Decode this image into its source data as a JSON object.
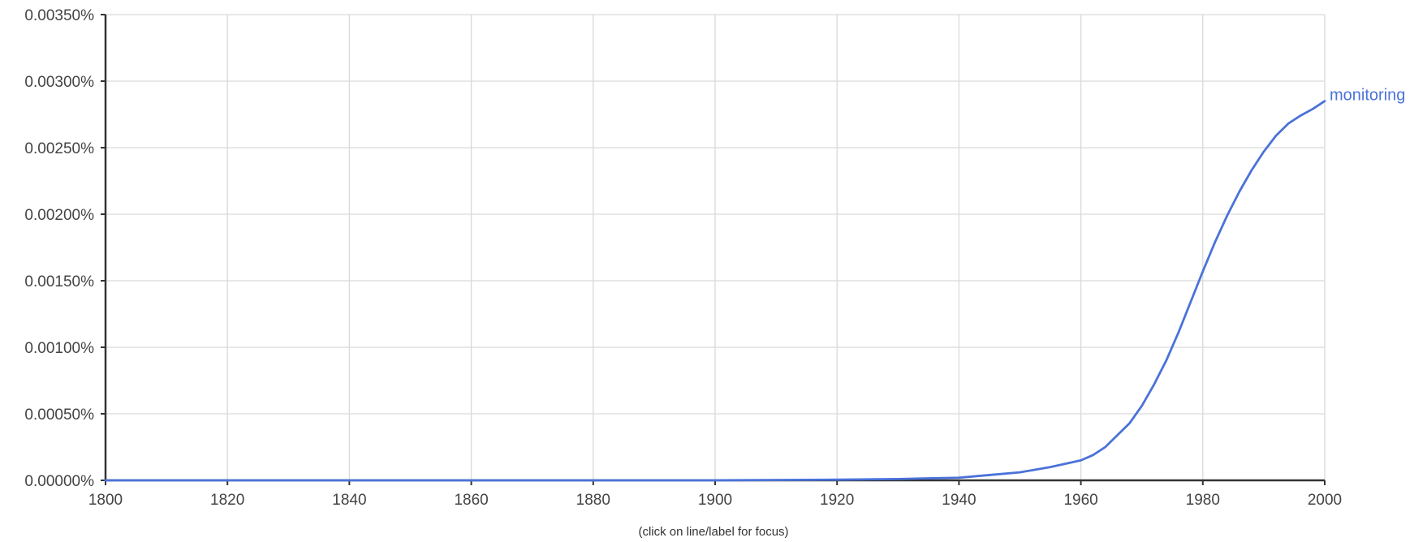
{
  "chart_data": {
    "type": "line",
    "title": "",
    "xlabel": "",
    "ylabel": "",
    "xlim": [
      1800,
      2000
    ],
    "ylim": [
      0,
      0.0035
    ],
    "x_ticks": [
      1800,
      1820,
      1840,
      1860,
      1880,
      1900,
      1920,
      1940,
      1960,
      1980,
      2000
    ],
    "y_ticks": [
      0,
      0.0005,
      0.001,
      0.0015,
      0.002,
      0.0025,
      0.003,
      0.0035
    ],
    "y_tick_labels": [
      "0.00000%",
      "0.00050%",
      "0.00100%",
      "0.00150%",
      "0.00200%",
      "0.00250%",
      "0.00300%",
      "0.00350%"
    ],
    "grid": true,
    "series": [
      {
        "name": "monitoring",
        "color": "#4a72d9",
        "x": [
          1800,
          1900,
          1920,
          1930,
          1940,
          1945,
          1950,
          1955,
          1960,
          1962,
          1964,
          1966,
          1968,
          1970,
          1972,
          1974,
          1976,
          1978,
          1980,
          1982,
          1984,
          1986,
          1988,
          1990,
          1992,
          1994,
          1996,
          1998,
          2000
        ],
        "values": [
          0,
          0,
          5e-06,
          1e-05,
          2e-05,
          4e-05,
          6e-05,
          0.0001,
          0.00015,
          0.00019,
          0.00025,
          0.00034,
          0.00043,
          0.00056,
          0.00072,
          0.0009,
          0.00111,
          0.00134,
          0.00157,
          0.00179,
          0.00199,
          0.00217,
          0.00233,
          0.00247,
          0.00259,
          0.00268,
          0.00274,
          0.00279,
          0.00285
        ]
      }
    ]
  },
  "footer": {
    "hint": "(click on line/label for focus)"
  }
}
